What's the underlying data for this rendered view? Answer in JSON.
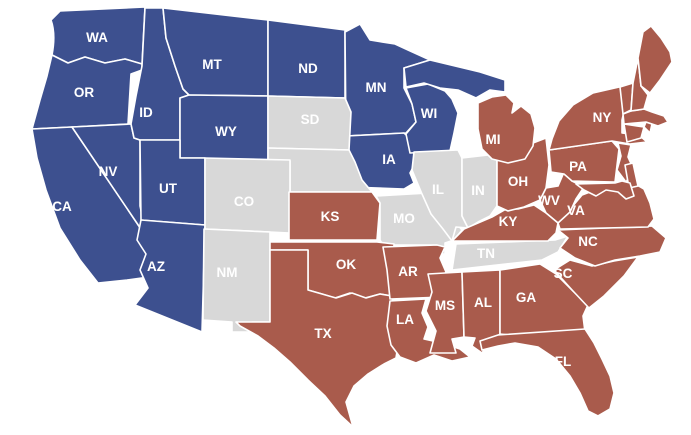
{
  "map": {
    "background": "#FFFFFF",
    "colors": {
      "blue": "#3D508F",
      "red": "#A95B4C",
      "gray": "#D8D8D8",
      "border": "#FFFFFF",
      "label": "#FFFFFF"
    },
    "states": [
      {
        "id": "WA",
        "label": "WA",
        "color": "blue"
      },
      {
        "id": "OR",
        "label": "OR",
        "color": "blue"
      },
      {
        "id": "CA",
        "label": "CA",
        "color": "blue"
      },
      {
        "id": "NV",
        "label": "NV",
        "color": "blue"
      },
      {
        "id": "ID",
        "label": "ID",
        "color": "blue"
      },
      {
        "id": "MT",
        "label": "MT",
        "color": "blue"
      },
      {
        "id": "WY",
        "label": "WY",
        "color": "blue"
      },
      {
        "id": "UT",
        "label": "UT",
        "color": "blue"
      },
      {
        "id": "AZ",
        "label": "AZ",
        "color": "blue"
      },
      {
        "id": "ND",
        "label": "ND",
        "color": "blue"
      },
      {
        "id": "MN",
        "label": "MN",
        "color": "blue"
      },
      {
        "id": "IA",
        "label": "IA",
        "color": "blue"
      },
      {
        "id": "WI",
        "label": "WI",
        "color": "blue"
      },
      {
        "id": "MI_UP",
        "label": "",
        "color": "blue"
      },
      {
        "id": "SD",
        "label": "SD",
        "color": "gray"
      },
      {
        "id": "NE",
        "label": "",
        "color": "gray"
      },
      {
        "id": "CO",
        "label": "CO",
        "color": "gray"
      },
      {
        "id": "NM",
        "label": "NM",
        "color": "gray"
      },
      {
        "id": "MO",
        "label": "MO",
        "color": "gray"
      },
      {
        "id": "IL",
        "label": "IL",
        "color": "gray"
      },
      {
        "id": "IN",
        "label": "IN",
        "color": "gray"
      },
      {
        "id": "TN",
        "label": "TN",
        "color": "gray"
      },
      {
        "id": "KS",
        "label": "KS",
        "color": "red"
      },
      {
        "id": "OK",
        "label": "OK",
        "color": "red"
      },
      {
        "id": "TX",
        "label": "TX",
        "color": "red"
      },
      {
        "id": "AR",
        "label": "AR",
        "color": "red"
      },
      {
        "id": "LA",
        "label": "LA",
        "color": "red"
      },
      {
        "id": "MS",
        "label": "MS",
        "color": "red"
      },
      {
        "id": "AL",
        "label": "AL",
        "color": "red"
      },
      {
        "id": "GA",
        "label": "GA",
        "color": "red"
      },
      {
        "id": "FL",
        "label": "FL",
        "color": "red"
      },
      {
        "id": "SC",
        "label": "SC",
        "color": "red"
      },
      {
        "id": "NC",
        "label": "NC",
        "color": "red"
      },
      {
        "id": "VA",
        "label": "VA",
        "color": "red"
      },
      {
        "id": "WV",
        "label": "WV",
        "color": "red"
      },
      {
        "id": "KY",
        "label": "KY",
        "color": "red"
      },
      {
        "id": "OH",
        "label": "OH",
        "color": "red"
      },
      {
        "id": "MI",
        "label": "MI",
        "color": "red"
      },
      {
        "id": "PA",
        "label": "PA",
        "color": "red"
      },
      {
        "id": "NY",
        "label": "NY",
        "color": "red"
      },
      {
        "id": "NJ",
        "label": "",
        "color": "red"
      },
      {
        "id": "DE",
        "label": "",
        "color": "red"
      },
      {
        "id": "MD",
        "label": "",
        "color": "red"
      },
      {
        "id": "CT",
        "label": "",
        "color": "red"
      },
      {
        "id": "RI",
        "label": "",
        "color": "red"
      },
      {
        "id": "MA",
        "label": "",
        "color": "red"
      },
      {
        "id": "VT",
        "label": "",
        "color": "red"
      },
      {
        "id": "NH",
        "label": "",
        "color": "red"
      },
      {
        "id": "ME",
        "label": "",
        "color": "red"
      }
    ]
  }
}
